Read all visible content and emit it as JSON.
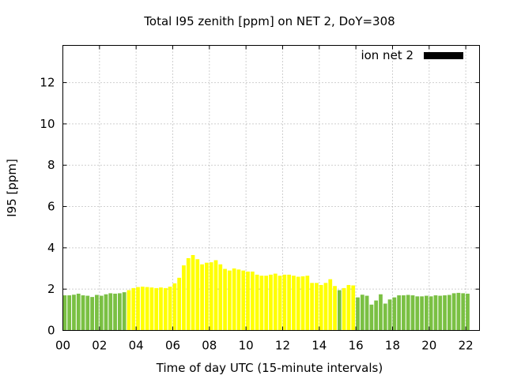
{
  "chart_data": {
    "type": "bar",
    "title": "Total I95 zenith [ppm] on NET 2, DoY=308",
    "xlabel": "Time of day UTC (15-minute intervals)",
    "ylabel": "I95 [ppm]",
    "xlim": [
      0,
      22.75
    ],
    "ylim": [
      0,
      13.8
    ],
    "xticks": [
      "00",
      "02",
      "04",
      "06",
      "08",
      "10",
      "12",
      "14",
      "16",
      "18",
      "20",
      "22"
    ],
    "yticks": [
      "0",
      "2",
      "4",
      "6",
      "8",
      "10",
      "12"
    ],
    "grid": true,
    "legend": {
      "position": "top-right",
      "entries": [
        {
          "label": "ion net 2",
          "color": "#000000"
        }
      ]
    },
    "colors": {
      "green": "#7ac043",
      "yellow": "#ffff00"
    },
    "bar_interval_hours": 0.25,
    "x_start_hours": 0,
    "values": [
      1.7,
      1.7,
      1.73,
      1.78,
      1.7,
      1.68,
      1.62,
      1.72,
      1.68,
      1.75,
      1.8,
      1.78,
      1.8,
      1.85,
      1.95,
      2.05,
      2.1,
      2.12,
      2.1,
      2.08,
      2.05,
      2.08,
      2.05,
      2.12,
      2.28,
      2.55,
      3.15,
      3.5,
      3.65,
      3.45,
      3.2,
      3.28,
      3.3,
      3.4,
      3.2,
      2.98,
      2.9,
      3.0,
      2.95,
      2.9,
      2.85,
      2.85,
      2.7,
      2.65,
      2.65,
      2.7,
      2.75,
      2.65,
      2.7,
      2.7,
      2.65,
      2.6,
      2.62,
      2.65,
      2.3,
      2.3,
      2.2,
      2.3,
      2.48,
      2.15,
      1.95,
      2.05,
      2.2,
      2.18,
      1.6,
      1.73,
      1.68,
      1.25,
      1.45,
      1.75,
      1.3,
      1.5,
      1.6,
      1.7,
      1.7,
      1.72,
      1.7,
      1.65,
      1.65,
      1.68,
      1.65,
      1.7,
      1.68,
      1.7,
      1.72,
      1.8,
      1.82,
      1.8,
      1.78
    ],
    "bar_colors": [
      "green",
      "green",
      "green",
      "green",
      "green",
      "green",
      "green",
      "green",
      "green",
      "green",
      "green",
      "green",
      "green",
      "green",
      "yellow",
      "yellow",
      "yellow",
      "yellow",
      "yellow",
      "yellow",
      "yellow",
      "yellow",
      "yellow",
      "yellow",
      "yellow",
      "yellow",
      "yellow",
      "yellow",
      "yellow",
      "yellow",
      "yellow",
      "yellow",
      "yellow",
      "yellow",
      "yellow",
      "yellow",
      "yellow",
      "yellow",
      "yellow",
      "yellow",
      "yellow",
      "yellow",
      "yellow",
      "yellow",
      "yellow",
      "yellow",
      "yellow",
      "yellow",
      "yellow",
      "yellow",
      "yellow",
      "yellow",
      "yellow",
      "yellow",
      "yellow",
      "yellow",
      "yellow",
      "yellow",
      "yellow",
      "yellow",
      "green",
      "yellow",
      "yellow",
      "yellow",
      "green",
      "green",
      "green",
      "green",
      "green",
      "green",
      "green",
      "green",
      "green",
      "green",
      "green",
      "green",
      "green",
      "green",
      "green",
      "green",
      "green",
      "green",
      "green",
      "green",
      "green",
      "green",
      "green",
      "green",
      "green"
    ]
  }
}
